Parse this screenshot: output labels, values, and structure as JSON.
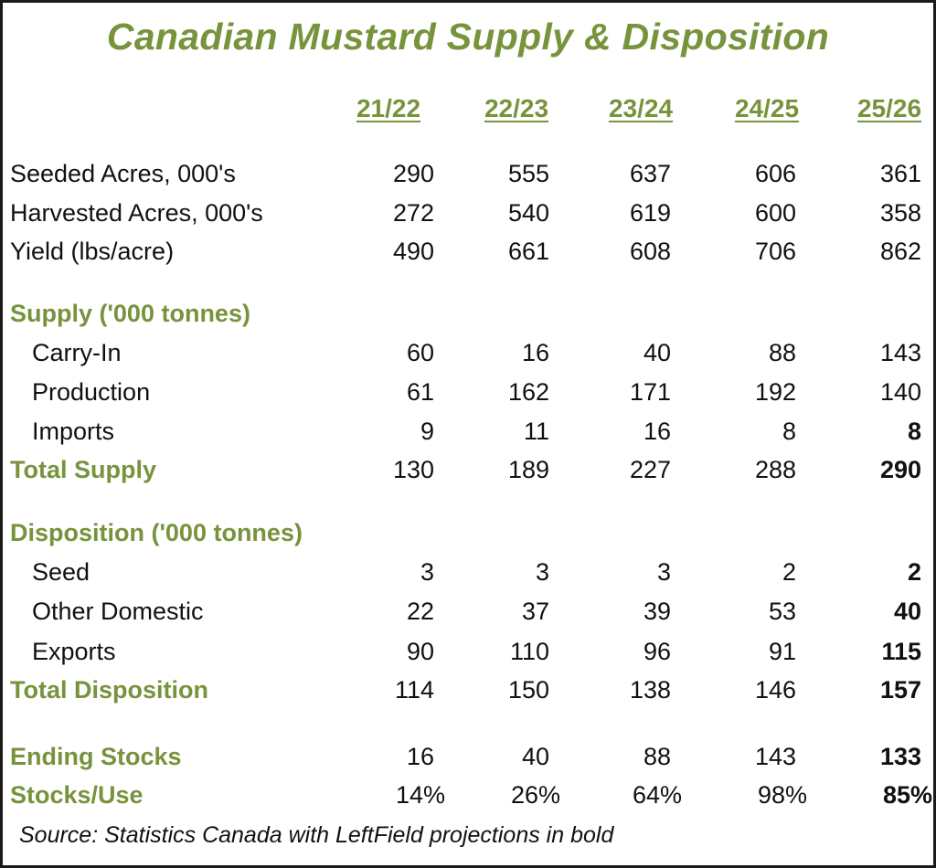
{
  "chart_data": {
    "type": "table",
    "title": "Canadian Mustard Supply & Disposition",
    "columns": [
      "21/22",
      "22/23",
      "23/24",
      "24/25",
      "25/26"
    ],
    "rows": [
      {
        "label": "Seeded Acres, 000's",
        "kind": "plain",
        "values": [
          "290",
          "555",
          "637",
          "606",
          "361"
        ],
        "bold_last": false
      },
      {
        "label": "Harvested Acres, 000's",
        "kind": "plain",
        "values": [
          "272",
          "540",
          "619",
          "600",
          "358"
        ],
        "bold_last": false
      },
      {
        "label": "Yield (lbs/acre)",
        "kind": "plain",
        "values": [
          "490",
          "661",
          "608",
          "706",
          "862"
        ],
        "bold_last": false
      },
      {
        "label": "Supply ('000 tonnes)",
        "kind": "section",
        "values": [],
        "bold_last": false
      },
      {
        "label": "Carry-In",
        "kind": "sub",
        "values": [
          "60",
          "16",
          "40",
          "88",
          "143"
        ],
        "bold_last": false
      },
      {
        "label": "Production",
        "kind": "sub",
        "values": [
          "61",
          "162",
          "171",
          "192",
          "140"
        ],
        "bold_last": false
      },
      {
        "label": "Imports",
        "kind": "sub",
        "values": [
          "9",
          "11",
          "16",
          "8",
          "8"
        ],
        "bold_last": true
      },
      {
        "label": "Total Supply",
        "kind": "section",
        "values": [
          "130",
          "189",
          "227",
          "288",
          "290"
        ],
        "bold_last": true
      },
      {
        "label": "Disposition ('000 tonnes)",
        "kind": "section",
        "values": [],
        "bold_last": false
      },
      {
        "label": "Seed",
        "kind": "sub",
        "values": [
          "3",
          "3",
          "3",
          "2",
          "2"
        ],
        "bold_last": true
      },
      {
        "label": "Other Domestic",
        "kind": "sub",
        "values": [
          "22",
          "37",
          "39",
          "53",
          "40"
        ],
        "bold_last": true
      },
      {
        "label": "Exports",
        "kind": "sub",
        "values": [
          "90",
          "110",
          "96",
          "91",
          "115"
        ],
        "bold_last": true
      },
      {
        "label": "Total Disposition",
        "kind": "section",
        "values": [
          "114",
          "150",
          "138",
          "146",
          "157"
        ],
        "bold_last": true
      },
      {
        "label": "Ending Stocks",
        "kind": "section",
        "values": [
          "16",
          "40",
          "88",
          "143",
          "133"
        ],
        "bold_last": true
      },
      {
        "label": "Stocks/Use",
        "kind": "section",
        "values": [
          "14%",
          "26%",
          "64%",
          "98%",
          "85%"
        ],
        "bold_last": true
      }
    ],
    "source": "Source: Statistics Canada with LeftField projections in bold",
    "colors": {
      "accent": "#77933c",
      "text": "#111111"
    }
  }
}
